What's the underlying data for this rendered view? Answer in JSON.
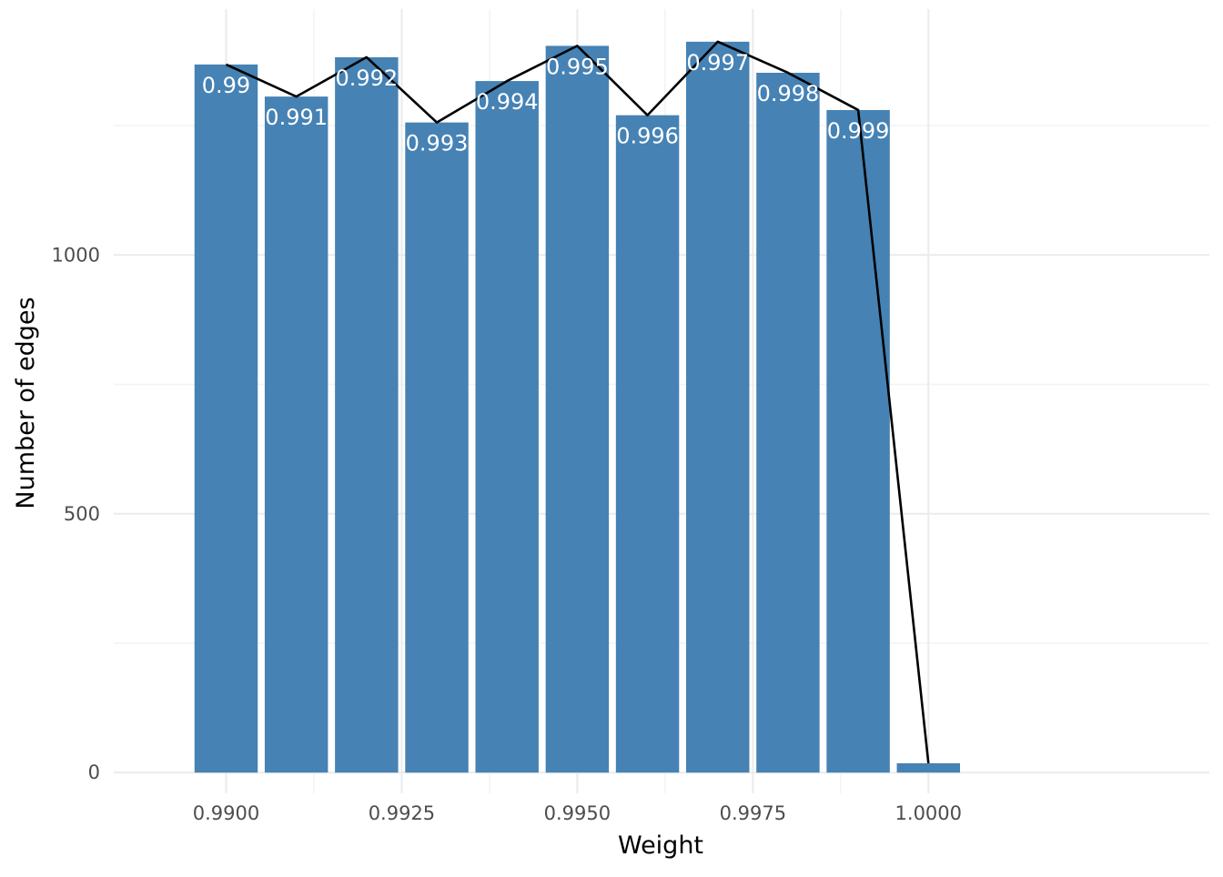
{
  "chart_data": {
    "type": "bar",
    "title": "",
    "xlabel": "Weight",
    "ylabel": "Number of edges",
    "xlim": [
      0.9884,
      1.004
    ],
    "ylim": [
      -40,
      1475
    ],
    "x_ticks": [
      0.99,
      0.9925,
      0.995,
      0.9975,
      1.0
    ],
    "x_tick_labels": [
      "0.9900",
      "0.9925",
      "0.9950",
      "0.9975",
      "1.0000"
    ],
    "y_ticks": [
      0,
      500,
      1000
    ],
    "y_tick_labels": [
      "0",
      "500",
      "1000"
    ],
    "grid": true,
    "bar_width": 0.0009,
    "colors": {
      "bar": "#4682b4",
      "line": "#000000",
      "bar_label": "#ffffff",
      "grid": "#ebebeb"
    },
    "x": [
      0.99,
      0.991,
      0.992,
      0.993,
      0.994,
      0.995,
      0.996,
      0.997,
      0.998,
      0.999,
      1.0
    ],
    "values": [
      1368,
      1306,
      1382,
      1256,
      1336,
      1404,
      1270,
      1412,
      1352,
      1280,
      18
    ],
    "bar_labels": [
      "0.99",
      "0.991",
      "0.992",
      "0.993",
      "0.994",
      "0.995",
      "0.996",
      "0.997",
      "0.998",
      "0.999",
      ""
    ],
    "line": {
      "x": [
        0.99,
        0.991,
        0.992,
        0.993,
        0.994,
        0.995,
        0.996,
        0.997,
        0.998,
        0.999,
        1.0
      ],
      "y": [
        1368,
        1306,
        1382,
        1256,
        1336,
        1404,
        1270,
        1412,
        1352,
        1280,
        18
      ]
    }
  }
}
